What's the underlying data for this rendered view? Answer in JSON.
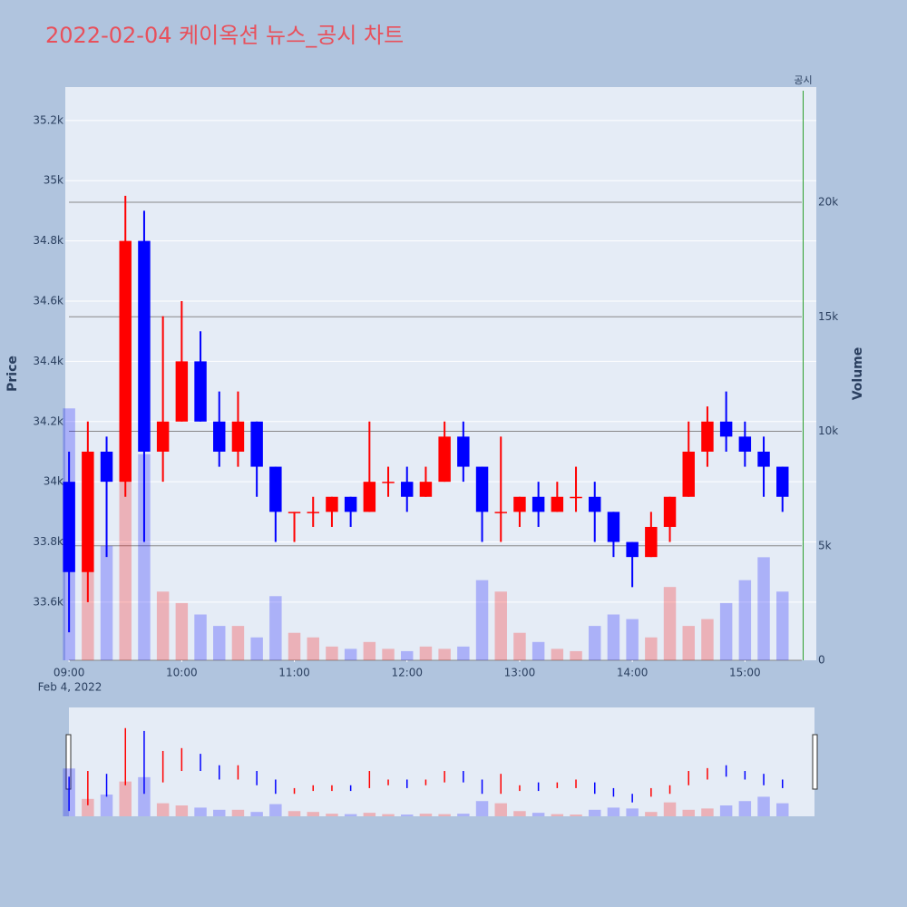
{
  "chart_data": {
    "type": "candlestick",
    "title": "2022-02-04 케이옥션 뉴스_공시 차트",
    "x": [
      "2022-02-04 09:00",
      "2022-02-04 09:10",
      "2022-02-04 09:20",
      "2022-02-04 09:30",
      "2022-02-04 09:40",
      "2022-02-04 09:50",
      "2022-02-04 10:00",
      "2022-02-04 10:10",
      "2022-02-04 10:20",
      "2022-02-04 10:30",
      "2022-02-04 10:40",
      "2022-02-04 10:50",
      "2022-02-04 11:00",
      "2022-02-04 11:10",
      "2022-02-04 11:20",
      "2022-02-04 11:30",
      "2022-02-04 11:40",
      "2022-02-04 11:50",
      "2022-02-04 12:00",
      "2022-02-04 12:10",
      "2022-02-04 12:20",
      "2022-02-04 12:30",
      "2022-02-04 12:40",
      "2022-02-04 12:50",
      "2022-02-04 13:00",
      "2022-02-04 13:10",
      "2022-02-04 13:20",
      "2022-02-04 13:30",
      "2022-02-04 13:40",
      "2022-02-04 13:50",
      "2022-02-04 14:00",
      "2022-02-04 14:10",
      "2022-02-04 14:20",
      "2022-02-04 14:30",
      "2022-02-04 14:40",
      "2022-02-04 14:50",
      "2022-02-04 15:00",
      "2022-02-04 15:10",
      "2022-02-04 15:20"
    ],
    "open": [
      34000,
      33700,
      34100,
      34000,
      34800,
      34100,
      34200,
      34400,
      34200,
      34100,
      34200,
      34050,
      33900,
      33900,
      33900,
      33950,
      33900,
      34000,
      34000,
      33950,
      34000,
      34150,
      34050,
      33900,
      33900,
      33950,
      33900,
      33950,
      33950,
      33900,
      33800,
      33750,
      33850,
      33950,
      34100,
      34200,
      34150,
      34100,
      34050
    ],
    "high": [
      34100,
      34200,
      34150,
      34950,
      34900,
      34550,
      34600,
      34500,
      34300,
      34300,
      34200,
      34050,
      33900,
      33950,
      33950,
      33950,
      34200,
      34050,
      34050,
      34050,
      34200,
      34200,
      34050,
      34150,
      33950,
      34000,
      34000,
      34050,
      34000,
      33900,
      33800,
      33900,
      33950,
      34200,
      34250,
      34300,
      34200,
      34150,
      34050
    ],
    "low": [
      33500,
      33600,
      33750,
      33950,
      33800,
      34000,
      34200,
      34200,
      34050,
      34050,
      33950,
      33800,
      33800,
      33850,
      33850,
      33850,
      33900,
      33950,
      33900,
      33950,
      34000,
      34000,
      33800,
      33800,
      33850,
      33850,
      33900,
      33900,
      33800,
      33750,
      33650,
      33750,
      33800,
      33950,
      34050,
      34100,
      34050,
      33950,
      33900
    ],
    "close": [
      33700,
      34100,
      34000,
      34800,
      34100,
      34200,
      34400,
      34200,
      34100,
      34200,
      34050,
      33900,
      33900,
      33900,
      33950,
      33900,
      34000,
      34000,
      33950,
      34000,
      34150,
      34050,
      33900,
      33900,
      33950,
      33900,
      33950,
      33950,
      33900,
      33800,
      33750,
      33850,
      33950,
      34100,
      34200,
      34150,
      34100,
      34050,
      33950
    ],
    "volume": [
      11000,
      4000,
      5000,
      8000,
      9000,
      3000,
      2500,
      2000,
      1500,
      1500,
      1000,
      2800,
      1200,
      1000,
      600,
      500,
      800,
      500,
      400,
      600,
      500,
      600,
      3500,
      3000,
      1200,
      800,
      500,
      400,
      1500,
      2000,
      1800,
      1000,
      3200,
      1500,
      1800,
      2500,
      3500,
      4500,
      3000
    ],
    "increasing_color": "#ff0000",
    "decreasing_color": "#0000ff",
    "xlim": [
      "2022-02-04 08:58",
      "2022-02-04 15:38"
    ],
    "xticks": [
      {
        "value": "2022-02-04 09:00",
        "label": "09:00"
      },
      {
        "value": "2022-02-04 10:00",
        "label": "10:00"
      },
      {
        "value": "2022-02-04 11:00",
        "label": "11:00"
      },
      {
        "value": "2022-02-04 12:00",
        "label": "12:00"
      },
      {
        "value": "2022-02-04 13:00",
        "label": "13:00"
      },
      {
        "value": "2022-02-04 14:00",
        "label": "14:00"
      },
      {
        "value": "2022-02-04 15:00",
        "label": "15:00"
      }
    ],
    "x_date": "Feb 4, 2022",
    "ylabel": "Price",
    "y2label": "Volume",
    "ylim": [
      33407,
      35311
    ],
    "yticks": [
      {
        "value": 33600,
        "label": "33.6k"
      },
      {
        "value": 33800,
        "label": "33.8k"
      },
      {
        "value": 34000,
        "label": "34k"
      },
      {
        "value": 34200,
        "label": "34.2k"
      },
      {
        "value": 34400,
        "label": "34.4k"
      },
      {
        "value": 34600,
        "label": "34.6k"
      },
      {
        "value": 34800,
        "label": "34.8k"
      },
      {
        "value": 35000,
        "label": "35k"
      },
      {
        "value": 35200,
        "label": "35.2k"
      }
    ],
    "y2lim": [
      0,
      25030
    ],
    "y2ticks": [
      0,
      {
        "value": 5000,
        "label": "5k"
      },
      {
        "value": 10000,
        "label": "10k"
      },
      {
        "value": 15000,
        "label": "15k"
      },
      {
        "value": 20000,
        "label": "20k"
      }
    ],
    "annotation": {
      "x": "2022-02-04 15:31",
      "label": "공시"
    },
    "grid": true
  }
}
